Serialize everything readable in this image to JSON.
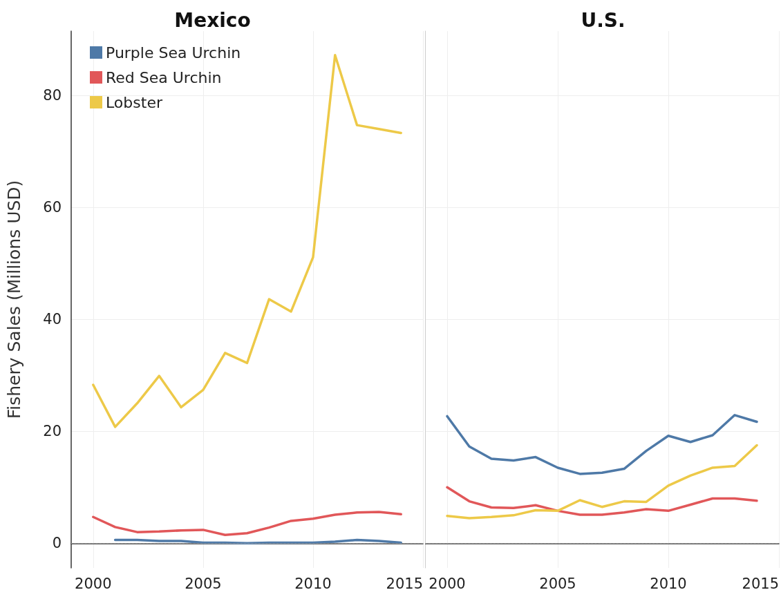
{
  "chart_data": [
    {
      "type": "line",
      "title": "Mexico",
      "ylabel": "Fishery Sales (Millions USD)",
      "x": [
        2000,
        2001,
        2002,
        2003,
        2004,
        2005,
        2006,
        2007,
        2008,
        2009,
        2010,
        2011,
        2012,
        2013,
        2014
      ],
      "series": [
        {
          "name": "Purple Sea Urchin",
          "color": "#4e79a7",
          "values": [
            null,
            0.6,
            0.6,
            0.4,
            0.4,
            0.1,
            0.1,
            0.0,
            0.1,
            0.1,
            0.1,
            0.3,
            0.6,
            0.4,
            0.1
          ]
        },
        {
          "name": "Red Sea Urchin",
          "color": "#e15759",
          "values": [
            4.7,
            2.9,
            2.0,
            2.1,
            2.3,
            2.4,
            1.5,
            1.8,
            2.8,
            4.0,
            4.4,
            5.1,
            5.5,
            5.6,
            5.2
          ]
        },
        {
          "name": "Lobster",
          "color": "#edc948",
          "values": [
            28.3,
            20.8,
            25.0,
            29.9,
            24.3,
            27.4,
            34.0,
            32.2,
            43.6,
            41.4,
            51.1,
            87.2,
            74.7,
            74.0,
            73.3
          ]
        }
      ],
      "xlim": [
        1999,
        2015
      ],
      "xticks": [
        2000,
        2005,
        2010,
        2015
      ],
      "ylim": [
        -4.4,
        91.5
      ],
      "yticks": [
        0,
        20,
        40,
        60,
        80
      ],
      "ref_lines": [
        {
          "axis": "y",
          "value": 0,
          "color": "#bbbbbb",
          "line_style": "dotted"
        }
      ],
      "grid": true,
      "legend": "top left",
      "marker": "none",
      "line_style": "solid"
    },
    {
      "type": "line",
      "title": "U.S.",
      "x": [
        2000,
        2001,
        2002,
        2003,
        2004,
        2005,
        2006,
        2007,
        2008,
        2009,
        2010,
        2011,
        2012,
        2013,
        2014
      ],
      "series": [
        {
          "color": "#4e79a7",
          "values": [
            22.7,
            17.3,
            15.1,
            14.8,
            15.4,
            13.5,
            12.4,
            12.6,
            13.3,
            16.5,
            19.2,
            18.1,
            19.3,
            22.9,
            21.7
          ]
        },
        {
          "color": "#e15759",
          "values": [
            10.0,
            7.5,
            6.4,
            6.3,
            6.8,
            5.8,
            5.1,
            5.1,
            5.5,
            6.1,
            5.8,
            6.9,
            8.0,
            8.0,
            7.6
          ]
        },
        {
          "color": "#edc948",
          "values": [
            4.9,
            4.5,
            4.7,
            5.0,
            5.9,
            5.8,
            7.7,
            6.5,
            7.5,
            7.4,
            10.3,
            12.1,
            13.5,
            13.8,
            17.5
          ]
        }
      ],
      "xlim": [
        1999,
        2015
      ],
      "xticks": [
        2000,
        2005,
        2010,
        2015
      ],
      "ylim": [
        -4.4,
        91.5
      ],
      "yticks": [
        0,
        20,
        40,
        60,
        80
      ],
      "ref_lines": [
        {
          "axis": "y",
          "value": 0,
          "color": "#bbbbbb",
          "line_style": "dotted"
        }
      ],
      "grid": true,
      "tick_labels": "x",
      "marker": "none",
      "line_style": "solid"
    }
  ]
}
